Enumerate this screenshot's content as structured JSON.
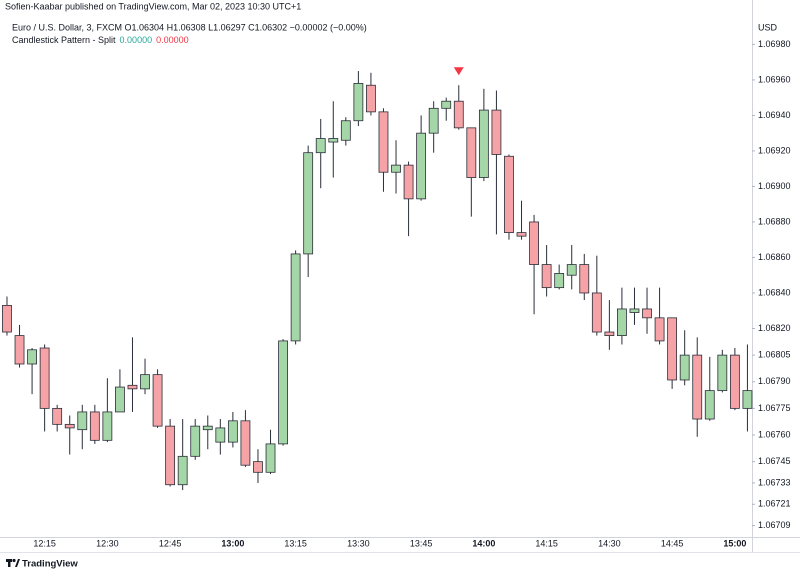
{
  "chart_data": {
    "type": "candlestick",
    "title": "Sofien-Kaabar published on TradingView.com, Mar 02, 2023 10:30 UTC+1",
    "legend": "Euro / U.S. Dollar, 3, FXCM  O1.06304 H1.06308 L1.06297 C1.06302 −0.00002 (−0.00%)",
    "indicator": {
      "name": "Candlestick Pattern - Split",
      "values": [
        "0.00000",
        "0.00000"
      ],
      "colors": [
        "#26a69a",
        "#f23645"
      ]
    },
    "currency": "USD",
    "brand": "TradingView",
    "up_color": "#a5d6a7",
    "down_color": "#f5a3a6",
    "wick_color": "#2a2e39",
    "signal_color": "#f23645",
    "signals": [
      36
    ],
    "grid": false,
    "categories": [
      null,
      null,
      null,
      "12:15",
      null,
      null,
      null,
      null,
      "12:30",
      null,
      null,
      null,
      null,
      "12:45",
      null,
      null,
      null,
      null,
      "13:00",
      null,
      null,
      null,
      null,
      "13:15",
      null,
      null,
      null,
      null,
      "13:30",
      null,
      null,
      null,
      null,
      "13:45",
      null,
      null,
      null,
      null,
      "14:00",
      null,
      null,
      null,
      null,
      "14:15",
      null,
      null,
      null,
      null,
      "14:30",
      null,
      null,
      null,
      null,
      "14:45",
      null,
      null,
      null,
      null,
      "15:00",
      null
    ],
    "open": [
      1.06833,
      1.06816,
      1.068,
      1.06809,
      1.06775,
      1.06766,
      1.06763,
      1.06773,
      1.06757,
      1.06773,
      1.06788,
      1.06786,
      1.06794,
      1.06765,
      1.06732,
      1.06748,
      1.06763,
      1.06756,
      1.06756,
      1.06768,
      1.06745,
      1.06739,
      1.06755,
      1.06813,
      1.06862,
      1.06919,
      1.06925,
      1.06926,
      1.06937,
      1.06957,
      1.06942,
      1.06908,
      1.06912,
      1.06893,
      1.0693,
      1.06944,
      1.06948,
      1.06933,
      1.06905,
      1.06943,
      1.06917,
      1.06874,
      1.0688,
      1.06856,
      1.06843,
      1.0685,
      1.06856,
      1.0684,
      1.06818,
      1.06816,
      1.06829,
      1.06831,
      1.06826,
      1.06826,
      1.06791,
      1.06805,
      1.06769,
      1.06785,
      1.06805,
      1.06775
    ],
    "high": [
      1.06838,
      1.06822,
      1.06809,
      1.06811,
      1.06777,
      1.06771,
      1.06777,
      1.06777,
      1.06792,
      1.06797,
      1.06815,
      1.06803,
      1.06797,
      1.06769,
      1.06769,
      1.06769,
      1.06771,
      1.06769,
      1.06773,
      1.06774,
      1.06752,
      1.06763,
      1.06814,
      1.06864,
      1.06923,
      1.06938,
      1.06948,
      1.06939,
      1.06965,
      1.06964,
      1.06944,
      1.06926,
      1.06914,
      1.0694,
      1.06948,
      1.0695,
      1.06957,
      1.06933,
      1.06955,
      1.06954,
      1.06918,
      1.06892,
      1.06884,
      1.06867,
      1.06856,
      1.06867,
      1.06862,
      1.06861,
      1.06836,
      1.06843,
      1.06843,
      1.06843,
      1.06843,
      1.06826,
      1.06819,
      1.06815,
      1.06804,
      1.06808,
      1.06809,
      1.06811
    ],
    "low": [
      1.06816,
      1.06798,
      1.06783,
      1.06762,
      1.06762,
      1.06749,
      1.06752,
      1.06755,
      1.06756,
      1.06773,
      1.06773,
      1.06783,
      1.06764,
      1.06731,
      1.06729,
      1.06746,
      1.06752,
      1.06749,
      1.06753,
      1.06742,
      1.06733,
      1.06738,
      1.06754,
      1.06811,
      1.06849,
      1.06899,
      1.06905,
      1.06923,
      1.06934,
      1.0694,
      1.06897,
      1.06896,
      1.06872,
      1.06892,
      1.06919,
      1.06937,
      1.06932,
      1.06883,
      1.06903,
      1.06873,
      1.0687,
      1.0687,
      1.06828,
      1.06838,
      1.06842,
      1.06842,
      1.06836,
      1.06816,
      1.06808,
      1.06811,
      1.06822,
      1.06817,
      1.06811,
      1.06786,
      1.06788,
      1.06759,
      1.06768,
      1.06784,
      1.06774,
      1.06762
    ],
    "close": [
      1.06818,
      1.068,
      1.06808,
      1.06775,
      1.06766,
      1.06764,
      1.06773,
      1.06757,
      1.06773,
      1.06787,
      1.06786,
      1.06794,
      1.06765,
      1.06732,
      1.06748,
      1.06765,
      1.06765,
      1.06764,
      1.06768,
      1.06743,
      1.06739,
      1.06755,
      1.06813,
      1.06862,
      1.06919,
      1.06927,
      1.06927,
      1.06937,
      1.06958,
      1.06942,
      1.06908,
      1.06912,
      1.06893,
      1.0693,
      1.06944,
      1.06948,
      1.06933,
      1.06905,
      1.06943,
      1.06918,
      1.06874,
      1.06872,
      1.06856,
      1.06843,
      1.06851,
      1.06856,
      1.0684,
      1.06818,
      1.06816,
      1.06831,
      1.06831,
      1.06826,
      1.06813,
      1.06791,
      1.06805,
      1.06769,
      1.06785,
      1.06805,
      1.06775,
      1.06785
    ],
    "ylim": [
      1.06702,
      1.07005
    ],
    "yticks": [
      {
        "value": 1.0698,
        "label": "1.06980"
      },
      {
        "value": 1.0696,
        "label": "1.06960"
      },
      {
        "value": 1.0694,
        "label": "1.06940"
      },
      {
        "value": 1.0692,
        "label": "1.06920"
      },
      {
        "value": 1.069,
        "label": "1.06900"
      },
      {
        "value": 1.0688,
        "label": "1.06880"
      },
      {
        "value": 1.0686,
        "label": "1.06860"
      },
      {
        "value": 1.0684,
        "label": "1.06840"
      },
      {
        "value": 1.0682,
        "label": "1.06820"
      },
      1.06805,
      {
        "value": 1.0679,
        "label": "1.06790"
      },
      1.06775,
      {
        "value": 1.0676,
        "label": "1.06760"
      },
      1.06745,
      1.06733,
      1.06721,
      1.06709
    ]
  }
}
